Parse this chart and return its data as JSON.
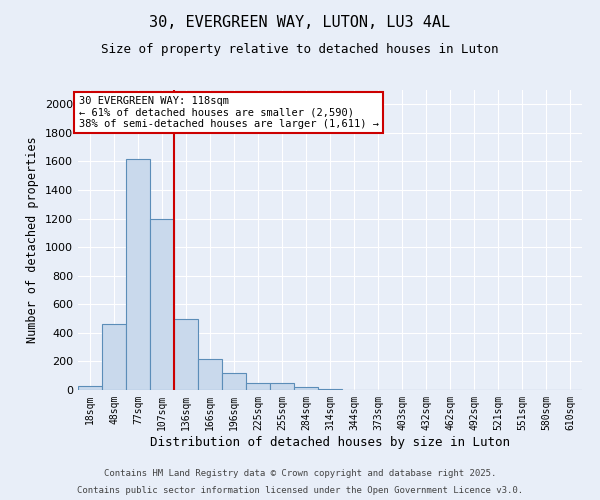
{
  "title1": "30, EVERGREEN WAY, LUTON, LU3 4AL",
  "title2": "Size of property relative to detached houses in Luton",
  "xlabel": "Distribution of detached houses by size in Luton",
  "ylabel": "Number of detached properties",
  "categories": [
    "18sqm",
    "48sqm",
    "77sqm",
    "107sqm",
    "136sqm",
    "166sqm",
    "196sqm",
    "225sqm",
    "255sqm",
    "284sqm",
    "314sqm",
    "344sqm",
    "373sqm",
    "403sqm",
    "432sqm",
    "462sqm",
    "492sqm",
    "521sqm",
    "551sqm",
    "580sqm",
    "610sqm"
  ],
  "values": [
    30,
    460,
    1620,
    1200,
    500,
    220,
    120,
    50,
    50,
    20,
    10,
    0,
    0,
    0,
    0,
    0,
    0,
    0,
    0,
    0,
    0
  ],
  "bar_color": "#c9d9ec",
  "bar_edge_color": "#5b8db8",
  "vline_color": "#cc0000",
  "ylim": [
    0,
    2100
  ],
  "yticks": [
    0,
    200,
    400,
    600,
    800,
    1000,
    1200,
    1400,
    1600,
    1800,
    2000
  ],
  "annotation_line1": "30 EVERGREEN WAY: 118sqm",
  "annotation_line2": "← 61% of detached houses are smaller (2,590)",
  "annotation_line3": "38% of semi-detached houses are larger (1,611) →",
  "annotation_box_color": "#ffffff",
  "annotation_box_edge": "#cc0000",
  "footer1": "Contains HM Land Registry data © Crown copyright and database right 2025.",
  "footer2": "Contains public sector information licensed under the Open Government Licence v3.0.",
  "bg_color": "#e8eef8",
  "plot_bg_color": "#e8eef8",
  "grid_color": "#ffffff"
}
